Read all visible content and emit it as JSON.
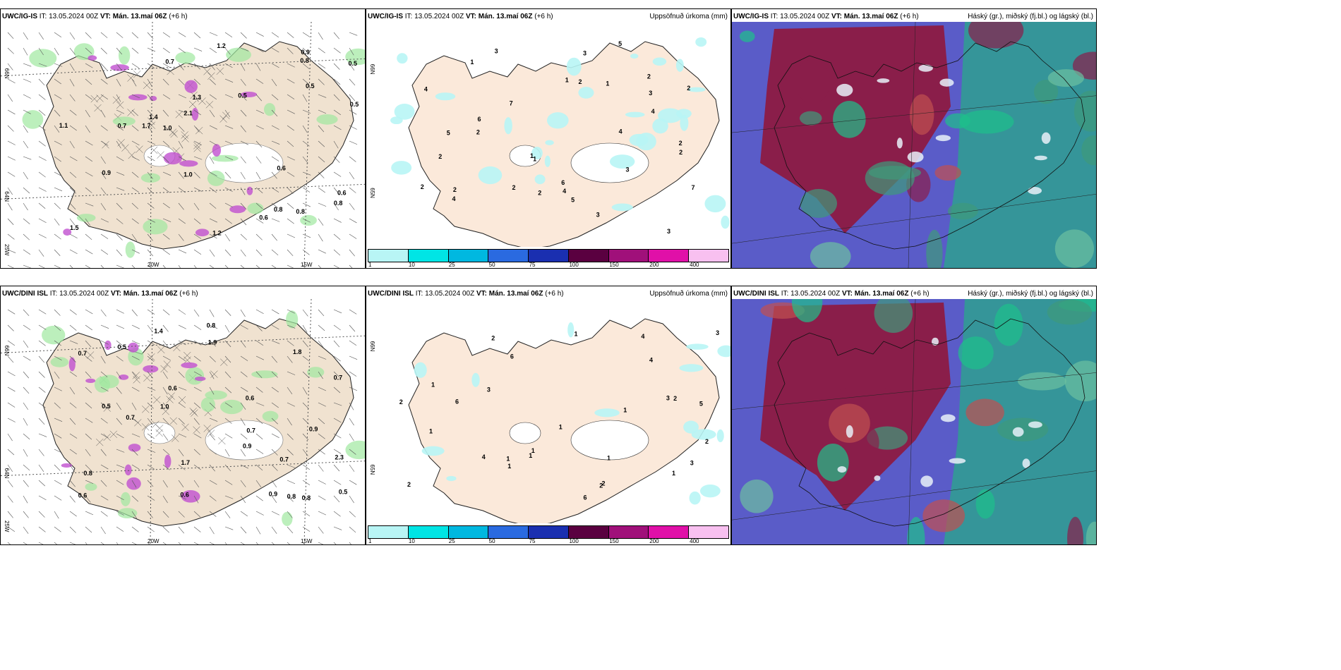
{
  "panels": [
    {
      "model": "UWC/IG-IS",
      "it": "IT: 13.05.2024 00Z",
      "vt": "VT: Mán. 13.maí 06Z",
      "lead": "(+6 h)",
      "right": ""
    },
    {
      "model": "UWC/IG-IS",
      "it": "IT: 13.05.2024 00Z",
      "vt": "VT: Mán. 13.maí 06Z",
      "lead": "(+6 h)",
      "right": "Uppsöfnuð úrkoma (mm)"
    },
    {
      "model": "UWC/IG-IS",
      "it": "IT: 13.05.2024 00Z",
      "vt": "VT: Mán. 13.maí 06Z",
      "lead": "(+6 h)",
      "right": "Háský (gr.), miðský (fj.bl.) og lágský (bl.)"
    },
    {
      "model": "UWC/DINI ISL",
      "it": "IT: 13.05.2024 00Z",
      "vt": "VT: Mán. 13.maí 06Z",
      "lead": "(+6 h)",
      "right": ""
    },
    {
      "model": "UWC/DINI ISL",
      "it": "IT: 13.05.2024 00Z",
      "vt": "VT: Mán. 13.maí 06Z",
      "lead": "(+6 h)",
      "right": "Uppsöfnuð úrkoma (mm)"
    },
    {
      "model": "UWC/DINI ISL",
      "it": "IT: 13.05.2024 00Z",
      "vt": "VT: Mán. 13.maí 06Z",
      "lead": "(+6 h)",
      "right": "Háský (gr.), miðský (fj.bl.) og lágský (bl.)"
    }
  ],
  "axes": {
    "lat66": "66N",
    "lat64": "64N",
    "lat65": "65N",
    "lon20": "20W",
    "lon15": "15W",
    "lon25": "25W"
  },
  "colorbar": {
    "ticks": [
      "1",
      "10",
      "25",
      "50",
      "75",
      "100",
      "150",
      "200",
      "400"
    ],
    "colors": [
      "#b8f5f5",
      "#00e5e5",
      "#00b8e0",
      "#2a6ae0",
      "#1a2fb0",
      "#5a0040",
      "#a0107a",
      "#e010a8",
      "#f8c0f0"
    ]
  },
  "wind_labels_top": [
    "0.6",
    "0.7",
    "0.5",
    "0.8",
    "0.8",
    "1.1",
    "0.8",
    "1.0",
    "0.5",
    "0.6",
    "1.0",
    "0.5",
    "1.4",
    "0.6",
    "1.3",
    "0.9",
    "1.2",
    "0.7",
    "1.2",
    "2.1",
    "1.5",
    "0.8",
    "0.5",
    "0.9",
    "1.7"
  ],
  "wind_labels_bottom": [
    "0.8",
    "0.7",
    "0.6",
    "0.6",
    "1.0",
    "0.7",
    "0.6",
    "0.9",
    "0.5",
    "1.4",
    "0.7",
    "0.8",
    "0.8",
    "0.7",
    "0.9",
    "0.5",
    "0.8",
    "0.9",
    "1.8",
    "1.7",
    "1.9",
    "0.7",
    "0.6",
    "2.3",
    "0.5"
  ],
  "precip_labels_top": [
    "2",
    "2",
    "1",
    "3",
    "4",
    "2",
    "4",
    "2",
    "6",
    "1",
    "3",
    "5",
    "2",
    "5",
    "7",
    "4",
    "3",
    "1",
    "2",
    "4",
    "3",
    "2",
    "2",
    "5",
    "3",
    "1",
    "6",
    "2",
    "4",
    "2",
    "7",
    "3",
    "1",
    "2"
  ],
  "precip_labels_bottom": [
    "1",
    "1",
    "2",
    "3",
    "1",
    "1",
    "1",
    "2",
    "1",
    "4",
    "1",
    "3",
    "2",
    "6",
    "4",
    "1",
    "3",
    "2",
    "1",
    "2",
    "5",
    "6",
    "4",
    "2",
    "3",
    "1",
    "2",
    "1",
    "6"
  ]
}
